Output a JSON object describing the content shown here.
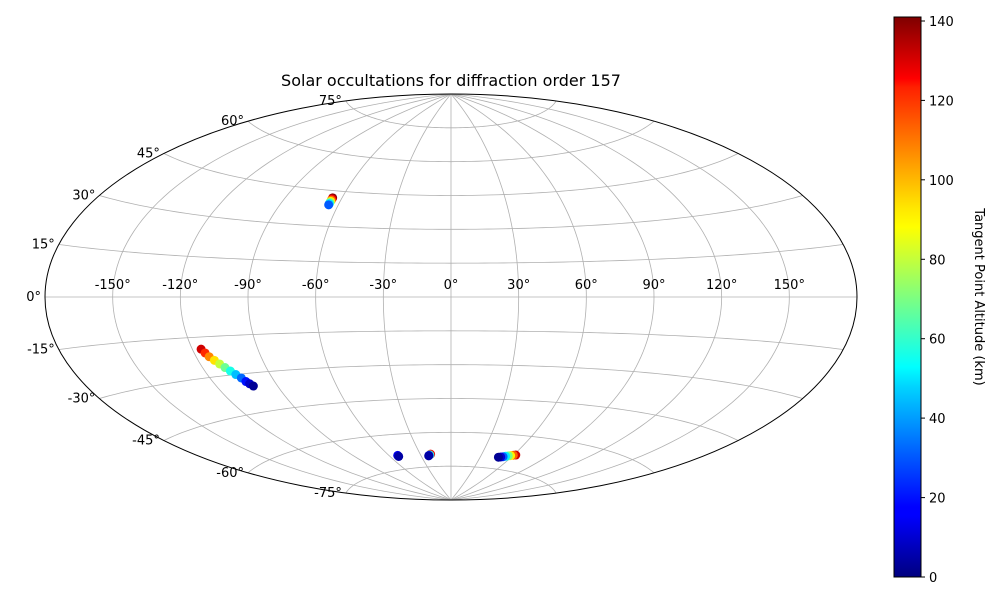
{
  "chart_data": {
    "type": "scatter",
    "projection": "aitoff",
    "title": "Solar occultations for diffraction order 157",
    "xlabel": "",
    "ylabel": "",
    "longitude_ticks": [
      "-150°",
      "-120°",
      "-90°",
      "-60°",
      "-30°",
      "0°",
      "30°",
      "60°",
      "90°",
      "120°",
      "150°"
    ],
    "latitude_ticks": [
      "75°",
      "60°",
      "45°",
      "30°",
      "15°",
      "0°",
      "-15°",
      "-30°",
      "-45°",
      "-60°",
      "-75°"
    ],
    "grid": true,
    "colorbar": {
      "label": "Tangent Point Altitude (km)",
      "range": [
        0,
        141
      ],
      "ticks": [
        "0",
        "20",
        "40",
        "60",
        "80",
        "100",
        "120",
        "140"
      ],
      "colormap": "jet"
    },
    "series": [
      {
        "points": [
          {
            "lon": -65,
            "lat": 42,
            "alt": 140
          },
          {
            "lon": -65,
            "lat": 41.5,
            "alt": 125
          },
          {
            "lon": -65,
            "lat": 41,
            "alt": 108
          },
          {
            "lon": -65,
            "lat": 40.5,
            "alt": 90
          },
          {
            "lon": -65,
            "lat": 40,
            "alt": 70
          },
          {
            "lon": -65,
            "lat": 39.5,
            "alt": 50
          },
          {
            "lon": -65,
            "lat": 39,
            "alt": 30
          }
        ]
      },
      {
        "points": [
          {
            "lon": -116,
            "lat": -19.5,
            "alt": 130
          },
          {
            "lon": -115,
            "lat": -21,
            "alt": 118
          },
          {
            "lon": -114,
            "lat": -22.5,
            "alt": 105
          },
          {
            "lon": -112.5,
            "lat": -24,
            "alt": 92
          },
          {
            "lon": -111,
            "lat": -25.5,
            "alt": 80
          },
          {
            "lon": -109.5,
            "lat": -27,
            "alt": 68
          },
          {
            "lon": -108,
            "lat": -28.5,
            "alt": 56
          },
          {
            "lon": -106.5,
            "lat": -30,
            "alt": 44
          },
          {
            "lon": -105,
            "lat": -31.5,
            "alt": 32
          },
          {
            "lon": -104,
            "lat": -33,
            "alt": 20
          },
          {
            "lon": -103,
            "lat": -34,
            "alt": 10
          },
          {
            "lon": -102,
            "lat": -35,
            "alt": 3
          }
        ]
      },
      {
        "points": [
          {
            "lon": -52,
            "lat": -69,
            "alt": 15
          },
          {
            "lon": -52,
            "lat": -69.5,
            "alt": 5
          }
        ]
      },
      {
        "points": [
          {
            "lon": -20,
            "lat": -69.5,
            "alt": 125
          },
          {
            "lon": -21,
            "lat": -69.8,
            "alt": 60
          },
          {
            "lon": -22,
            "lat": -70,
            "alt": 20
          },
          {
            "lon": -22.5,
            "lat": -70.2,
            "alt": 5
          }
        ]
      },
      {
        "points": [
          {
            "lon": 62,
            "lat": -68.3,
            "alt": 130
          },
          {
            "lon": 60,
            "lat": -68.5,
            "alt": 110
          },
          {
            "lon": 58,
            "lat": -68.8,
            "alt": 90
          },
          {
            "lon": 56,
            "lat": -69,
            "alt": 70
          },
          {
            "lon": 54,
            "lat": -69.3,
            "alt": 50
          },
          {
            "lon": 52,
            "lat": -69.6,
            "alt": 30
          },
          {
            "lon": 50,
            "lat": -69.8,
            "alt": 12
          },
          {
            "lon": 48,
            "lat": -70,
            "alt": 3
          }
        ]
      }
    ]
  }
}
